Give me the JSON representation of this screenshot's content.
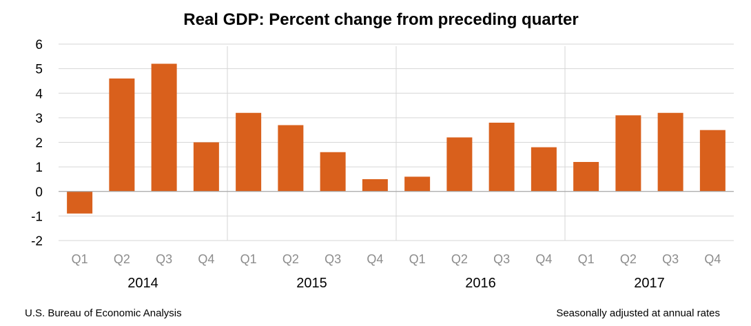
{
  "chart_data": {
    "type": "bar",
    "title": "Real GDP:  Percent change from preceding quarter",
    "categories": [
      "Q1",
      "Q2",
      "Q3",
      "Q4",
      "Q1",
      "Q2",
      "Q3",
      "Q4",
      "Q1",
      "Q2",
      "Q3",
      "Q4",
      "Q1",
      "Q2",
      "Q3",
      "Q4"
    ],
    "groups": [
      {
        "label": "2014",
        "count": 4
      },
      {
        "label": "2015",
        "count": 4
      },
      {
        "label": "2016",
        "count": 4
      },
      {
        "label": "2017",
        "count": 4
      }
    ],
    "values": [
      -0.9,
      4.6,
      5.2,
      2.0,
      3.2,
      2.7,
      1.6,
      0.5,
      0.6,
      2.2,
      2.8,
      1.8,
      1.2,
      3.1,
      3.2,
      2.5
    ],
    "ylim": [
      -2,
      6
    ],
    "yticks": [
      "6",
      "5",
      "4",
      "3",
      "2",
      "1",
      "0",
      "-1",
      "-2"
    ],
    "grid": true,
    "bar_color": "#d9601c",
    "xlabel": "",
    "ylabel": ""
  },
  "source_note": "U.S. Bureau of Economic Analysis",
  "rate_note": "Seasonally adjusted at annual rates"
}
